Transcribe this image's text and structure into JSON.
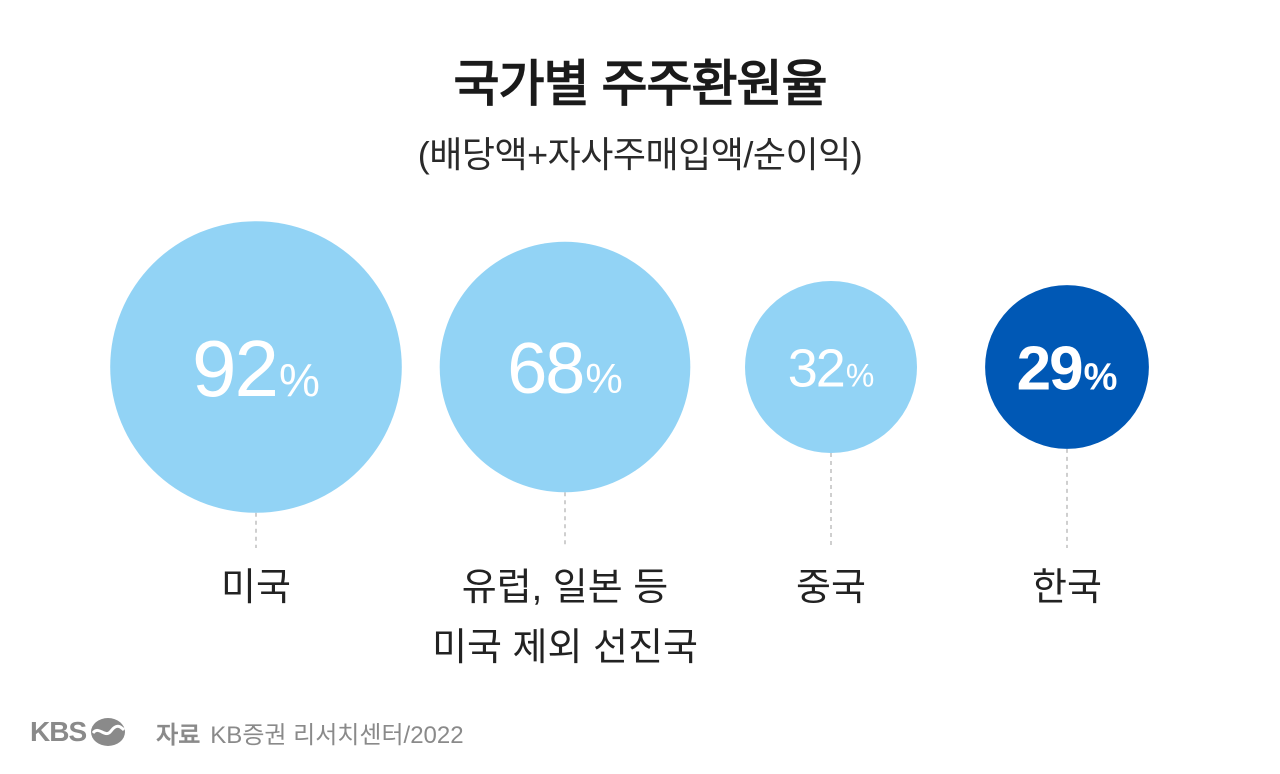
{
  "chart_data": {
    "type": "scatter",
    "title": "국가별 주주환원율",
    "subtitle": "(배당액+자사주매입액/순이익)",
    "categories": [
      [
        "미국"
      ],
      [
        "유럽, 일본 등",
        "미국 제외 선진국"
      ],
      [
        "중국"
      ],
      [
        "한국"
      ]
    ],
    "values": [
      92,
      68,
      32,
      29
    ],
    "unit": "%",
    "highlight_index": 3,
    "colors": {
      "bubble": "#92D3F5",
      "highlight": "#0058B5",
      "value_text": "#FFFFFF",
      "leader_line": "#BFBFBF",
      "label_text": "#222222"
    }
  },
  "footer": {
    "logo": "KBS",
    "source_label": "자료",
    "source_text": "KB증권 리서치센터/2022"
  }
}
